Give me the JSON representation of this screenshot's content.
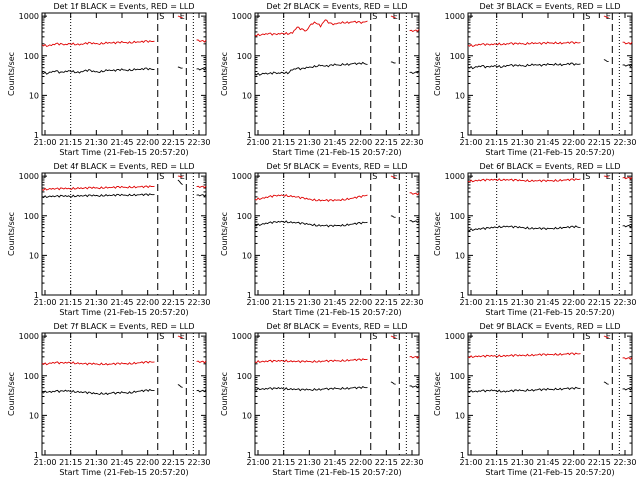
{
  "figure": {
    "background": "#ffffff",
    "event_color": "#000000",
    "lld_color": "#e00000"
  },
  "chart_data": [
    {
      "type": "line",
      "title": "Det 1f BLACK = Events, RED = LLD",
      "xlabel": "Start Time (21-Feb-15 20:57:20)",
      "ylabel": "Counts/sec",
      "x_ticks": [
        "21:00",
        "21:15",
        "21:30",
        "21:45",
        "22:00",
        "22:15",
        "22:30"
      ],
      "y_ticks": [
        "1",
        "10",
        "100",
        "1000"
      ],
      "ylim": [
        1,
        1200
      ],
      "log_y": true,
      "markers": [
        "S",
        "E"
      ],
      "series": [
        {
          "color": "#000000",
          "values": [
            38,
            36,
            39,
            41,
            37,
            40,
            42,
            39,
            38,
            41,
            43,
            40,
            39,
            41,
            44,
            42,
            43,
            45,
            43,
            44,
            46,
            45,
            47,
            46,
            45,
            null,
            null,
            null,
            null,
            52,
            48,
            null,
            null,
            46,
            45,
            47
          ]
        },
        {
          "color": "#e00000",
          "values": [
            190,
            180,
            185,
            200,
            195,
            190,
            205,
            198,
            192,
            200,
            210,
            205,
            200,
            208,
            215,
            210,
            212,
            220,
            215,
            218,
            225,
            222,
            230,
            228,
            232,
            null,
            null,
            null,
            null,
            1000,
            900,
            null,
            null,
            250,
            230,
            235
          ]
        }
      ]
    },
    {
      "type": "line",
      "title": "Det 2f BLACK = Events, RED = LLD",
      "xlabel": "Start Time (21-Feb-15 20:57:20)",
      "ylabel": "Counts/sec",
      "x_ticks": [
        "21:00",
        "21:15",
        "21:30",
        "21:45",
        "22:00",
        "22:15",
        "22:30"
      ],
      "y_ticks": [
        "1",
        "10",
        "100",
        "1000"
      ],
      "ylim": [
        1,
        1200
      ],
      "log_y": true,
      "markers": [
        "S",
        "E"
      ],
      "series": [
        {
          "color": "#000000",
          "values": [
            35,
            34,
            36,
            35,
            37,
            36,
            38,
            37,
            45,
            48,
            46,
            50,
            52,
            55,
            58,
            54,
            56,
            60,
            58,
            62,
            60,
            64,
            62,
            65,
            60,
            null,
            null,
            null,
            null,
            70,
            65,
            null,
            null,
            38,
            36,
            40
          ]
        },
        {
          "color": "#e00000",
          "values": [
            330,
            340,
            350,
            360,
            345,
            355,
            370,
            365,
            380,
            520,
            460,
            420,
            640,
            700,
            560,
            800,
            650,
            620,
            680,
            700,
            690,
            720,
            700,
            680,
            750,
            null,
            null,
            null,
            null,
            1000,
            900,
            null,
            null,
            430,
            420,
            440
          ]
        }
      ]
    },
    {
      "type": "line",
      "title": "Det 3f BLACK = Events, RED = LLD",
      "xlabel": "Start Time (21-Feb-15 20:57:20)",
      "ylabel": "Counts/sec",
      "x_ticks": [
        "21:00",
        "21:15",
        "21:30",
        "21:45",
        "22:00",
        "22:15",
        "22:30"
      ],
      "y_ticks": [
        "1",
        "10",
        "100",
        "1000"
      ],
      "ylim": [
        1,
        1200
      ],
      "log_y": true,
      "markers": [
        "S",
        "E"
      ],
      "series": [
        {
          "color": "#000000",
          "values": [
            52,
            50,
            53,
            55,
            51,
            54,
            56,
            53,
            55,
            58,
            56,
            57,
            55,
            59,
            60,
            58,
            57,
            61,
            60,
            62,
            59,
            61,
            63,
            60,
            62,
            null,
            null,
            null,
            null,
            80,
            70,
            null,
            null,
            58,
            56,
            57
          ]
        },
        {
          "color": "#e00000",
          "values": [
            185,
            180,
            188,
            195,
            190,
            192,
            200,
            198,
            196,
            205,
            200,
            204,
            198,
            208,
            210,
            206,
            204,
            212,
            210,
            214,
            208,
            212,
            216,
            210,
            214,
            null,
            null,
            null,
            null,
            1000,
            900,
            null,
            null,
            220,
            200,
            210
          ]
        }
      ]
    },
    {
      "type": "line",
      "title": "Det 4f BLACK = Events, RED = LLD",
      "xlabel": "Start Time (21-Feb-15 20:57:20)",
      "ylabel": "Counts/sec",
      "x_ticks": [
        "21:00",
        "21:15",
        "21:30",
        "21:45",
        "22:00",
        "22:15",
        "22:30"
      ],
      "y_ticks": [
        "1",
        "10",
        "100",
        "1000"
      ],
      "ylim": [
        1,
        1200
      ],
      "log_y": true,
      "markers": [
        "S",
        "E"
      ],
      "series": [
        {
          "color": "#000000",
          "values": [
            300,
            305,
            310,
            308,
            312,
            315,
            310,
            318,
            320,
            316,
            322,
            325,
            320,
            328,
            330,
            326,
            332,
            335,
            330,
            338,
            336,
            340,
            338,
            342,
            340,
            null,
            null,
            null,
            null,
            800,
            600,
            null,
            null,
            330,
            325,
            330
          ]
        },
        {
          "color": "#e00000",
          "values": [
            460,
            470,
            480,
            475,
            482,
            490,
            485,
            495,
            500,
            492,
            505,
            510,
            502,
            515,
            520,
            512,
            525,
            530,
            520,
            535,
            532,
            540,
            536,
            545,
            550,
            null,
            null,
            null,
            null,
            1000,
            950,
            null,
            null,
            540,
            530,
            535
          ]
        }
      ]
    },
    {
      "type": "line",
      "title": "Det 5f BLACK = Events, RED = LLD",
      "xlabel": "Start Time (21-Feb-15 20:57:20)",
      "ylabel": "Counts/sec",
      "x_ticks": [
        "21:00",
        "21:15",
        "21:30",
        "21:45",
        "22:00",
        "22:15",
        "22:30"
      ],
      "y_ticks": [
        "1",
        "10",
        "100",
        "1000"
      ],
      "ylim": [
        1,
        1200
      ],
      "log_y": true,
      "markers": [
        "S",
        "E"
      ],
      "series": [
        {
          "color": "#000000",
          "values": [
            58,
            60,
            63,
            66,
            68,
            70,
            72,
            70,
            68,
            66,
            64,
            62,
            60,
            58,
            57,
            56,
            55,
            56,
            57,
            58,
            60,
            62,
            64,
            66,
            68,
            null,
            null,
            null,
            null,
            100,
            90,
            null,
            null,
            75,
            70,
            72
          ]
        },
        {
          "color": "#e00000",
          "values": [
            260,
            270,
            285,
            300,
            315,
            325,
            330,
            322,
            310,
            295,
            280,
            268,
            258,
            250,
            246,
            244,
            243,
            246,
            250,
            258,
            268,
            280,
            295,
            310,
            330,
            null,
            null,
            null,
            null,
            1000,
            900,
            null,
            null,
            380,
            350,
            360
          ]
        }
      ]
    },
    {
      "type": "line",
      "title": "Det 6f BLACK = Events, RED = LLD",
      "xlabel": "Start Time (21-Feb-15 20:57:20)",
      "ylabel": "Counts/sec",
      "x_ticks": [
        "21:00",
        "21:15",
        "21:30",
        "21:45",
        "22:00",
        "22:15",
        "22:30"
      ],
      "y_ticks": [
        "1",
        "10",
        "100",
        "1000"
      ],
      "ylim": [
        1,
        1200
      ],
      "log_y": true,
      "markers": [
        "S",
        "E"
      ],
      "series": [
        {
          "color": "#000000",
          "values": [
            44,
            45,
            46,
            47,
            48,
            50,
            52,
            53,
            54,
            53,
            52,
            51,
            50,
            49,
            48,
            48,
            47,
            47,
            48,
            49,
            50,
            51,
            52,
            53,
            50,
            null,
            null,
            null,
            null,
            null,
            null,
            null,
            null,
            55,
            54,
            55
          ]
        },
        {
          "color": "#e00000",
          "values": [
            740,
            760,
            775,
            790,
            800,
            810,
            820,
            815,
            810,
            800,
            790,
            780,
            775,
            770,
            765,
            762,
            760,
            765,
            770,
            780,
            790,
            800,
            810,
            820,
            840,
            null,
            null,
            null,
            null,
            1000,
            950,
            null,
            null,
            900,
            880,
            890
          ]
        }
      ]
    },
    {
      "type": "line",
      "title": "Det 7f BLACK = Events, RED = LLD",
      "xlabel": "Start Time (21-Feb-15 20:57:20)",
      "ylabel": "Counts/sec",
      "x_ticks": [
        "21:00",
        "21:15",
        "21:30",
        "21:45",
        "22:00",
        "22:15",
        "22:30"
      ],
      "y_ticks": [
        "1",
        "10",
        "100",
        "1000"
      ],
      "ylim": [
        1,
        1200
      ],
      "log_y": true,
      "markers": [
        "S",
        "E"
      ],
      "series": [
        {
          "color": "#000000",
          "values": [
            38,
            40,
            39,
            41,
            40,
            42,
            41,
            40,
            39,
            38,
            37,
            36,
            35,
            36,
            35,
            37,
            36,
            38,
            37,
            38,
            40,
            41,
            42,
            43,
            42,
            null,
            null,
            null,
            null,
            60,
            50,
            null,
            null,
            42,
            40,
            43
          ]
        },
        {
          "color": "#e00000",
          "values": [
            205,
            200,
            210,
            215,
            208,
            212,
            218,
            210,
            205,
            200,
            198,
            202,
            196,
            200,
            195,
            198,
            200,
            204,
            202,
            206,
            210,
            214,
            218,
            220,
            222,
            null,
            null,
            null,
            null,
            1000,
            900,
            null,
            null,
            230,
            220,
            225
          ]
        }
      ]
    },
    {
      "type": "line",
      "title": "Det 8f BLACK = Events, RED = LLD",
      "xlabel": "Start Time (21-Feb-15 20:57:20)",
      "ylabel": "Counts/sec",
      "x_ticks": [
        "21:00",
        "21:15",
        "21:30",
        "21:45",
        "22:00",
        "22:15",
        "22:30"
      ],
      "y_ticks": [
        "1",
        "10",
        "100",
        "1000"
      ],
      "ylim": [
        1,
        1200
      ],
      "log_y": true,
      "markers": [
        "S",
        "E"
      ],
      "series": [
        {
          "color": "#000000",
          "values": [
            45,
            47,
            46,
            48,
            47,
            49,
            48,
            47,
            46,
            45,
            44,
            45,
            44,
            46,
            45,
            47,
            46,
            48,
            47,
            49,
            48,
            50,
            49,
            51,
            50,
            null,
            null,
            null,
            null,
            70,
            60,
            null,
            null,
            55,
            52,
            54
          ]
        },
        {
          "color": "#e00000",
          "values": [
            225,
            230,
            228,
            235,
            232,
            238,
            240,
            236,
            232,
            228,
            226,
            230,
            228,
            232,
            230,
            236,
            234,
            240,
            238,
            244,
            246,
            250,
            252,
            256,
            258,
            null,
            null,
            null,
            null,
            1000,
            900,
            null,
            null,
            300,
            290,
            295
          ]
        }
      ]
    },
    {
      "type": "line",
      "title": "Det 9f BLACK = Events, RED = LLD",
      "xlabel": "Start Time (21-Feb-15 20:57:20)",
      "ylabel": "Counts/sec",
      "x_ticks": [
        "21:00",
        "21:15",
        "21:30",
        "21:45",
        "22:00",
        "22:15",
        "22:30"
      ],
      "y_ticks": [
        "1",
        "10",
        "100",
        "1000"
      ],
      "ylim": [
        1,
        1200
      ],
      "log_y": true,
      "markers": [
        "S",
        "E"
      ],
      "series": [
        {
          "color": "#000000",
          "values": [
            40,
            41,
            40,
            42,
            41,
            43,
            42,
            41,
            40,
            41,
            42,
            43,
            42,
            44,
            43,
            45,
            44,
            46,
            45,
            47,
            46,
            48,
            47,
            49,
            48,
            null,
            null,
            null,
            null,
            70,
            60,
            null,
            null,
            46,
            45,
            47
          ]
        },
        {
          "color": "#e00000",
          "values": [
            300,
            305,
            310,
            308,
            312,
            318,
            315,
            320,
            318,
            322,
            326,
            324,
            330,
            334,
            332,
            338,
            342,
            340,
            346,
            350,
            348,
            354,
            358,
            356,
            360,
            null,
            null,
            null,
            null,
            1000,
            900,
            null,
            null,
            280,
            270,
            275
          ]
        }
      ]
    }
  ]
}
